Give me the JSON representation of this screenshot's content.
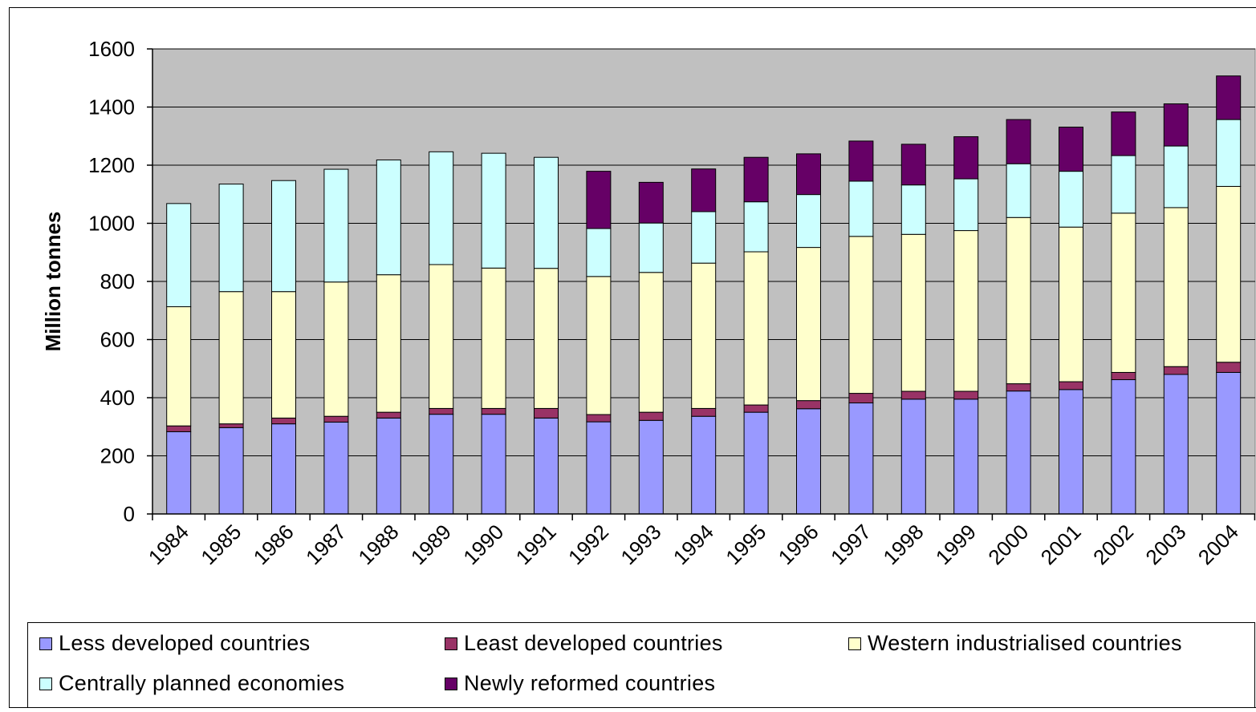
{
  "chart_data": {
    "type": "bar",
    "stacked": true,
    "title": "",
    "xlabel": "",
    "ylabel": "Million tonnes",
    "ylim": [
      0,
      1600
    ],
    "yticks": [
      0,
      200,
      400,
      600,
      800,
      1000,
      1200,
      1400,
      1600
    ],
    "grid": true,
    "legend_position": "bottom",
    "categories": [
      "1984",
      "1985",
      "1986",
      "1987",
      "1988",
      "1989",
      "1990",
      "1991",
      "1992",
      "1993",
      "1994",
      "1995",
      "1996",
      "1997",
      "1998",
      "1999",
      "2000",
      "2001",
      "2002",
      "2003",
      "2004"
    ],
    "series": [
      {
        "name": "Less developed countries",
        "color": "#9999ff",
        "values": [
          283,
          297,
          310,
          316,
          330,
          343,
          343,
          330,
          317,
          322,
          336,
          350,
          362,
          382,
          395,
          395,
          423,
          428,
          462,
          480,
          487
        ]
      },
      {
        "name": "Least developed countries",
        "color": "#993366",
        "values": [
          20,
          13,
          20,
          20,
          20,
          20,
          20,
          33,
          25,
          28,
          27,
          25,
          28,
          33,
          27,
          27,
          25,
          27,
          25,
          27,
          35
        ]
      },
      {
        "name": "Western industrialised countries",
        "color": "#ffffcc",
        "values": [
          410,
          455,
          435,
          462,
          473,
          495,
          483,
          482,
          475,
          481,
          500,
          527,
          527,
          540,
          540,
          553,
          572,
          532,
          548,
          547,
          605
        ]
      },
      {
        "name": "Centrally planned economies",
        "color": "#ccffff",
        "values": [
          355,
          370,
          382,
          388,
          395,
          388,
          395,
          382,
          165,
          170,
          177,
          172,
          182,
          190,
          170,
          178,
          185,
          192,
          198,
          212,
          230
        ]
      },
      {
        "name": "Newly reformed countries",
        "color": "#660066",
        "values": [
          0,
          0,
          0,
          0,
          0,
          0,
          0,
          0,
          197,
          140,
          147,
          153,
          140,
          138,
          140,
          145,
          152,
          152,
          150,
          145,
          150
        ]
      }
    ],
    "plot_background": "#c0c0c0"
  }
}
